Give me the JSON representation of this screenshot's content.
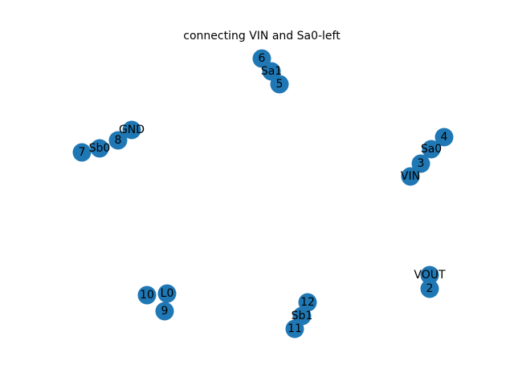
{
  "title": "connecting VIN and Sa0-left",
  "node_color": "#1f77b4",
  "nodes": [
    {
      "id": "6"
    },
    {
      "id": "Sa1"
    },
    {
      "id": "5"
    },
    {
      "id": "4"
    },
    {
      "id": "Sa0"
    },
    {
      "id": "3"
    },
    {
      "id": "VIN"
    },
    {
      "id": "GND"
    },
    {
      "id": "8"
    },
    {
      "id": "Sb0"
    },
    {
      "id": "7"
    },
    {
      "id": "VOUT"
    },
    {
      "id": "2"
    },
    {
      "id": "10"
    },
    {
      "id": "L0"
    },
    {
      "id": "9"
    },
    {
      "id": "12"
    },
    {
      "id": "Sb1"
    },
    {
      "id": "11"
    }
  ]
}
